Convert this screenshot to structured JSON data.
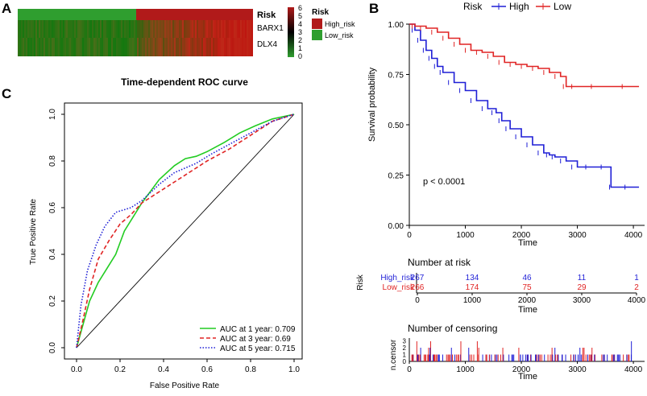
{
  "panel_a": {
    "label": "A",
    "rows": [
      "Risk",
      "BARX1",
      "DLX4"
    ],
    "color_ticks": [
      "6",
      "5",
      "4",
      "3",
      "2",
      "1",
      "0"
    ],
    "legend_title": "Risk",
    "legend_items": [
      "High_risk",
      "Low_risk"
    ],
    "colors": {
      "high": "#b11a1a",
      "low": "#2f9e2f",
      "mid": "#000000"
    }
  },
  "panel_b": {
    "label": "B",
    "legend_title": "Risk",
    "legend_items": [
      "High",
      "Low"
    ],
    "pvalue": "p < 0.0001",
    "risk_table_title": "Number at risk",
    "risk_table_ylabel": "Risk",
    "risk_groups": [
      "High_risk",
      "Low_risk"
    ],
    "risk_counts": [
      [
        "267",
        "134",
        "46",
        "11",
        "1"
      ],
      [
        "266",
        "174",
        "75",
        "29",
        "2"
      ]
    ],
    "censor_title": "Number of censoring",
    "censor_ylabel": "n.censor",
    "censor_ticks": [
      "0",
      "1",
      "2",
      "3"
    ],
    "xlabel": "Time",
    "xticks": [
      "0",
      "1000",
      "2000",
      "3000",
      "4000"
    ],
    "colors": {
      "high": "#1f1fd6",
      "low": "#e02424"
    }
  },
  "panel_c": {
    "label": "C",
    "legend_items": [
      "AUC at 1 year: 0.709",
      "AUC at 3 year: 0.69",
      "AUC at 5 year: 0.715"
    ],
    "colors": {
      "y1": "#22cc22",
      "y3": "#e02424",
      "y5": "#1f1fd6"
    }
  },
  "chart_data": [
    {
      "type": "heatmap",
      "title": "",
      "rows": [
        "Risk",
        "BARX1",
        "DLX4"
      ],
      "columns_ordered_by": "risk score",
      "group_split": {
        "Low_risk": 266,
        "High_risk": 267
      },
      "color_scale": [
        0,
        6
      ],
      "legend": [
        "High_risk",
        "Low_risk"
      ]
    },
    {
      "type": "line",
      "subtype": "kaplan-meier",
      "title": "",
      "xlabel": "Time",
      "ylabel": "Survival probability",
      "xlim": [
        0,
        4200
      ],
      "ylim": [
        0,
        1
      ],
      "yticks": [
        "0.00",
        "0.25",
        "0.50",
        "0.75",
        "1.00"
      ],
      "xticks": [
        0,
        1000,
        2000,
        3000,
        4000
      ],
      "series": [
        {
          "name": "High",
          "x": [
            0,
            100,
            200,
            300,
            400,
            500,
            600,
            800,
            1000,
            1200,
            1400,
            1550,
            1650,
            1800,
            2000,
            2200,
            2400,
            2500,
            2600,
            2800,
            3000,
            3300,
            3550,
            3600,
            4100
          ],
          "y": [
            1.0,
            0.97,
            0.92,
            0.87,
            0.83,
            0.79,
            0.76,
            0.71,
            0.67,
            0.62,
            0.58,
            0.56,
            0.52,
            0.48,
            0.44,
            0.4,
            0.36,
            0.35,
            0.34,
            0.32,
            0.29,
            0.29,
            0.29,
            0.19,
            0.19
          ]
        },
        {
          "name": "Low",
          "x": [
            0,
            100,
            300,
            500,
            700,
            900,
            1100,
            1300,
            1500,
            1700,
            1900,
            2100,
            2300,
            2500,
            2700,
            2800,
            3000,
            3500,
            4100
          ],
          "y": [
            1.0,
            0.99,
            0.98,
            0.96,
            0.93,
            0.9,
            0.87,
            0.86,
            0.84,
            0.81,
            0.8,
            0.79,
            0.78,
            0.76,
            0.74,
            0.69,
            0.69,
            0.69,
            0.69
          ]
        }
      ],
      "annotation": "p < 0.0001"
    },
    {
      "type": "line",
      "subtype": "roc",
      "title": "Time-dependent ROC curve",
      "xlabel": "False Positive Rate",
      "ylabel": "True Positive Rate",
      "xlim": [
        0,
        1
      ],
      "ylim": [
        0,
        1
      ],
      "xticks": [
        "0.0",
        "0.2",
        "0.4",
        "0.6",
        "0.8",
        "1.0"
      ],
      "yticks": [
        "0.0",
        "0.2",
        "0.4",
        "0.6",
        "0.8",
        "1.0"
      ],
      "series": [
        {
          "name": "AUC at 1 year: 0.709",
          "x": [
            0,
            0.03,
            0.06,
            0.1,
            0.14,
            0.18,
            0.22,
            0.3,
            0.38,
            0.45,
            0.5,
            0.55,
            0.6,
            0.68,
            0.75,
            0.82,
            0.9,
            1.0
          ],
          "y": [
            0,
            0.1,
            0.2,
            0.28,
            0.34,
            0.4,
            0.5,
            0.62,
            0.72,
            0.78,
            0.81,
            0.82,
            0.84,
            0.88,
            0.92,
            0.95,
            0.98,
            1.0
          ]
        },
        {
          "name": "AUC at 3 year: 0.69",
          "x": [
            0,
            0.03,
            0.06,
            0.1,
            0.15,
            0.2,
            0.25,
            0.3,
            0.4,
            0.5,
            0.6,
            0.7,
            0.8,
            0.9,
            1.0
          ],
          "y": [
            0,
            0.12,
            0.25,
            0.38,
            0.46,
            0.53,
            0.57,
            0.62,
            0.68,
            0.74,
            0.8,
            0.85,
            0.91,
            0.97,
            1.0
          ]
        },
        {
          "name": "AUC at 5 year: 0.715",
          "x": [
            0,
            0.02,
            0.05,
            0.09,
            0.13,
            0.18,
            0.25,
            0.3,
            0.38,
            0.45,
            0.55,
            0.62,
            0.7,
            0.8,
            0.9,
            1.0
          ],
          "y": [
            0,
            0.18,
            0.33,
            0.44,
            0.52,
            0.58,
            0.6,
            0.63,
            0.7,
            0.75,
            0.79,
            0.83,
            0.87,
            0.92,
            0.97,
            1.0
          ]
        }
      ],
      "reference_line": "diagonal",
      "legend": "bottom-right"
    }
  ]
}
